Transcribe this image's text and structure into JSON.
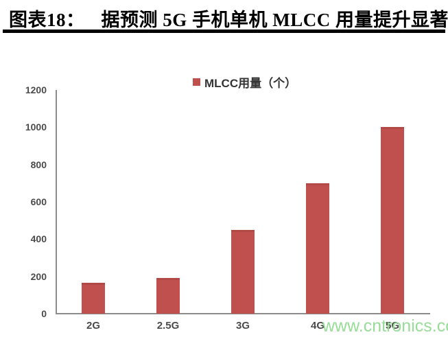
{
  "header": {
    "label": "图表18：",
    "title": "据预测 5G 手机单机 MLCC 用量提升显著"
  },
  "legend": {
    "label": "MLCC用量（个）"
  },
  "chart_data": {
    "type": "bar",
    "title": "据预测5G手机单机MLCC用量提升显著",
    "series_name": "MLCC用量（个）",
    "categories": [
      "2G",
      "2.5G",
      "3G",
      "4G",
      "5G"
    ],
    "values": [
      165,
      190,
      450,
      700,
      1000
    ],
    "xlabel": "",
    "ylabel": "",
    "ylim": [
      0,
      1200
    ],
    "yticks": [
      0,
      200,
      400,
      600,
      800,
      1000,
      1200
    ],
    "grid": false,
    "legend_position": "top-center",
    "bar_color": "#C0504D"
  },
  "watermark": {
    "text": "www.cntronics.com",
    "color": "#92DB92"
  },
  "colors": {
    "bar": "#C0504D",
    "axis": "#8C8C8C",
    "tick_label": "#4A4A4A",
    "legend_text": "#333333",
    "title_text": "#000000",
    "rule": "#000000"
  }
}
